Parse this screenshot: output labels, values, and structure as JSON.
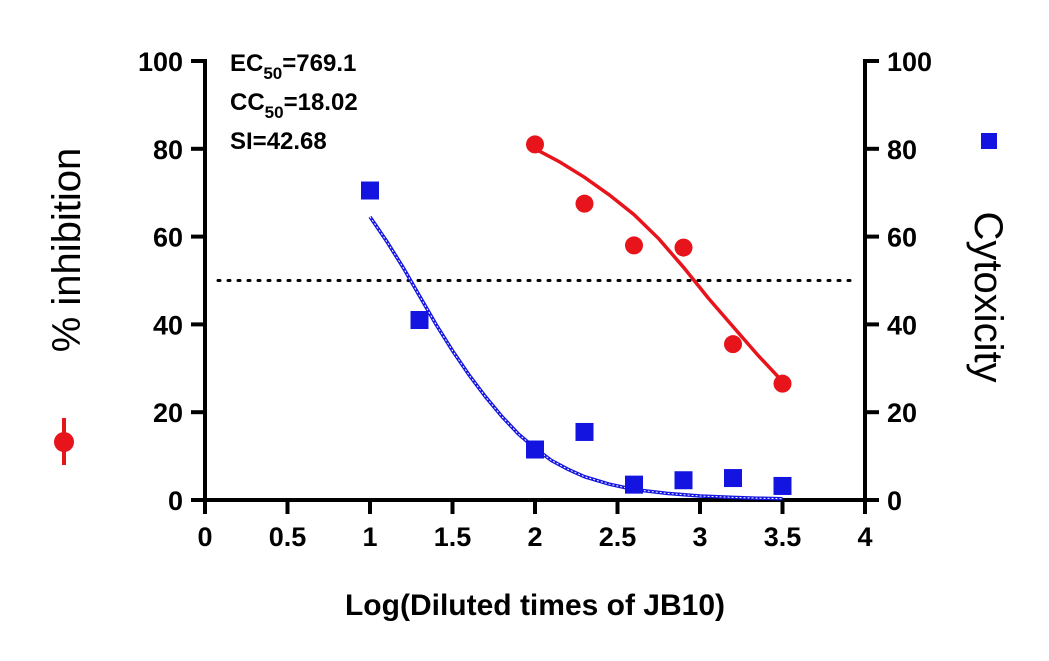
{
  "chart_data": {
    "type": "scatter",
    "x": {
      "label": "Log(Diluted times of JB10)",
      "range": [
        0,
        4
      ],
      "ticks": [
        "0",
        "0.5",
        "1",
        "1.5",
        "2",
        "2.5",
        "3",
        "3.5",
        "4"
      ]
    },
    "y_left": {
      "label": "% inhibition",
      "range": [
        0,
        100
      ],
      "ticks": [
        "0",
        "20",
        "40",
        "60",
        "80",
        "100"
      ]
    },
    "y_right": {
      "label": "Cytoxicity",
      "range": [
        0,
        100
      ],
      "ticks": [
        "0",
        "20",
        "40",
        "60",
        "80",
        "100"
      ]
    },
    "reference_line": {
      "y": 50,
      "style": "dotted"
    },
    "annotations": [
      {
        "base": "EC",
        "sub": "50",
        "rest": "=769.1"
      },
      {
        "base": "CC",
        "sub": "50",
        "rest": "=18.02"
      },
      {
        "base": "SI=42.68",
        "sub": "",
        "rest": ""
      }
    ],
    "series": [
      {
        "axis": "left",
        "color": "#e8141c",
        "marker": "circle",
        "points": [
          [
            2.0,
            81
          ],
          [
            2.3,
            67.5
          ],
          [
            2.6,
            58
          ],
          [
            2.9,
            57.5
          ],
          [
            3.2,
            35.5
          ],
          [
            3.5,
            26.5
          ]
        ],
        "fit": [
          [
            2.0,
            80
          ],
          [
            2.15,
            77
          ],
          [
            2.3,
            73.5
          ],
          [
            2.45,
            69.5
          ],
          [
            2.6,
            65
          ],
          [
            2.75,
            59.5
          ],
          [
            2.9,
            53
          ],
          [
            3.05,
            46
          ],
          [
            3.2,
            39.5
          ],
          [
            3.35,
            33
          ],
          [
            3.5,
            27
          ]
        ]
      },
      {
        "axis": "right",
        "color": "#1414e0",
        "marker": "square",
        "points": [
          [
            1.0,
            70.5
          ],
          [
            1.3,
            41
          ],
          [
            2.0,
            11.5
          ],
          [
            2.3,
            15.5
          ],
          [
            2.6,
            3.5
          ],
          [
            2.9,
            4.5
          ],
          [
            3.2,
            5
          ],
          [
            3.5,
            3.2
          ]
        ],
        "fit": [
          [
            1.0,
            64.5
          ],
          [
            1.1,
            59
          ],
          [
            1.2,
            53
          ],
          [
            1.3,
            46.5
          ],
          [
            1.4,
            40
          ],
          [
            1.5,
            34
          ],
          [
            1.6,
            28.5
          ],
          [
            1.7,
            23.5
          ],
          [
            1.8,
            19
          ],
          [
            1.9,
            15
          ],
          [
            2.0,
            11.8
          ],
          [
            2.1,
            9
          ],
          [
            2.2,
            7
          ],
          [
            2.3,
            5.3
          ],
          [
            2.45,
            3.6
          ],
          [
            2.6,
            2.4
          ],
          [
            2.8,
            1.5
          ],
          [
            3.0,
            0.9
          ],
          [
            3.2,
            0.6
          ],
          [
            3.35,
            0.4
          ],
          [
            3.5,
            0.3
          ]
        ]
      }
    ]
  }
}
